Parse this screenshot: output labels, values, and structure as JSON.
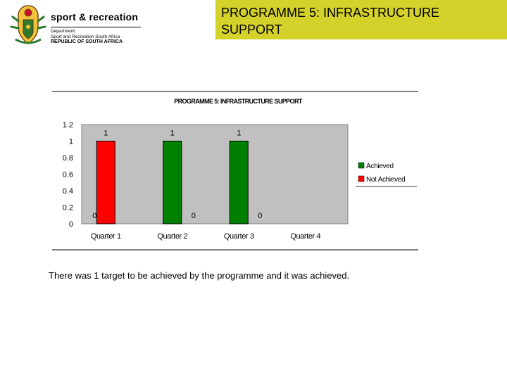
{
  "header": {
    "brand": "sport & recreation",
    "dept_line1": "Department:",
    "dept_line2": "Sport and Recreation South Africa",
    "country": "REPUBLIC OF SOUTH AFRICA",
    "slide_title": "PROGRAMME 5: INFRASTRUCTURE SUPPORT",
    "title_bg": "#d4d12a"
  },
  "chart_data": {
    "type": "bar",
    "title": "PROGRAMME 5: INFRASTRUCTURE SUPPORT",
    "categories": [
      "Quarter 1",
      "Quarter 2",
      "Quarter 3",
      "Quarter 4"
    ],
    "series": [
      {
        "name": "Achieved",
        "color": "#008000",
        "values": [
          0,
          1,
          1,
          null
        ],
        "labels": [
          "0",
          "1",
          "1",
          ""
        ]
      },
      {
        "name": "Not Achieved",
        "color": "#ff0000",
        "values": [
          1,
          0,
          0,
          null
        ],
        "labels": [
          "1",
          "0",
          "0",
          ""
        ]
      }
    ],
    "ylim": [
      0,
      1.2
    ],
    "yticks": [
      "0",
      "0.2",
      "0.4",
      "0.6",
      "0.8",
      "1",
      "1.2"
    ],
    "plot_bg": "#c0c0c0",
    "legend_position": "right"
  },
  "caption": "There was 1 target to be achieved by the programme and it was achieved."
}
